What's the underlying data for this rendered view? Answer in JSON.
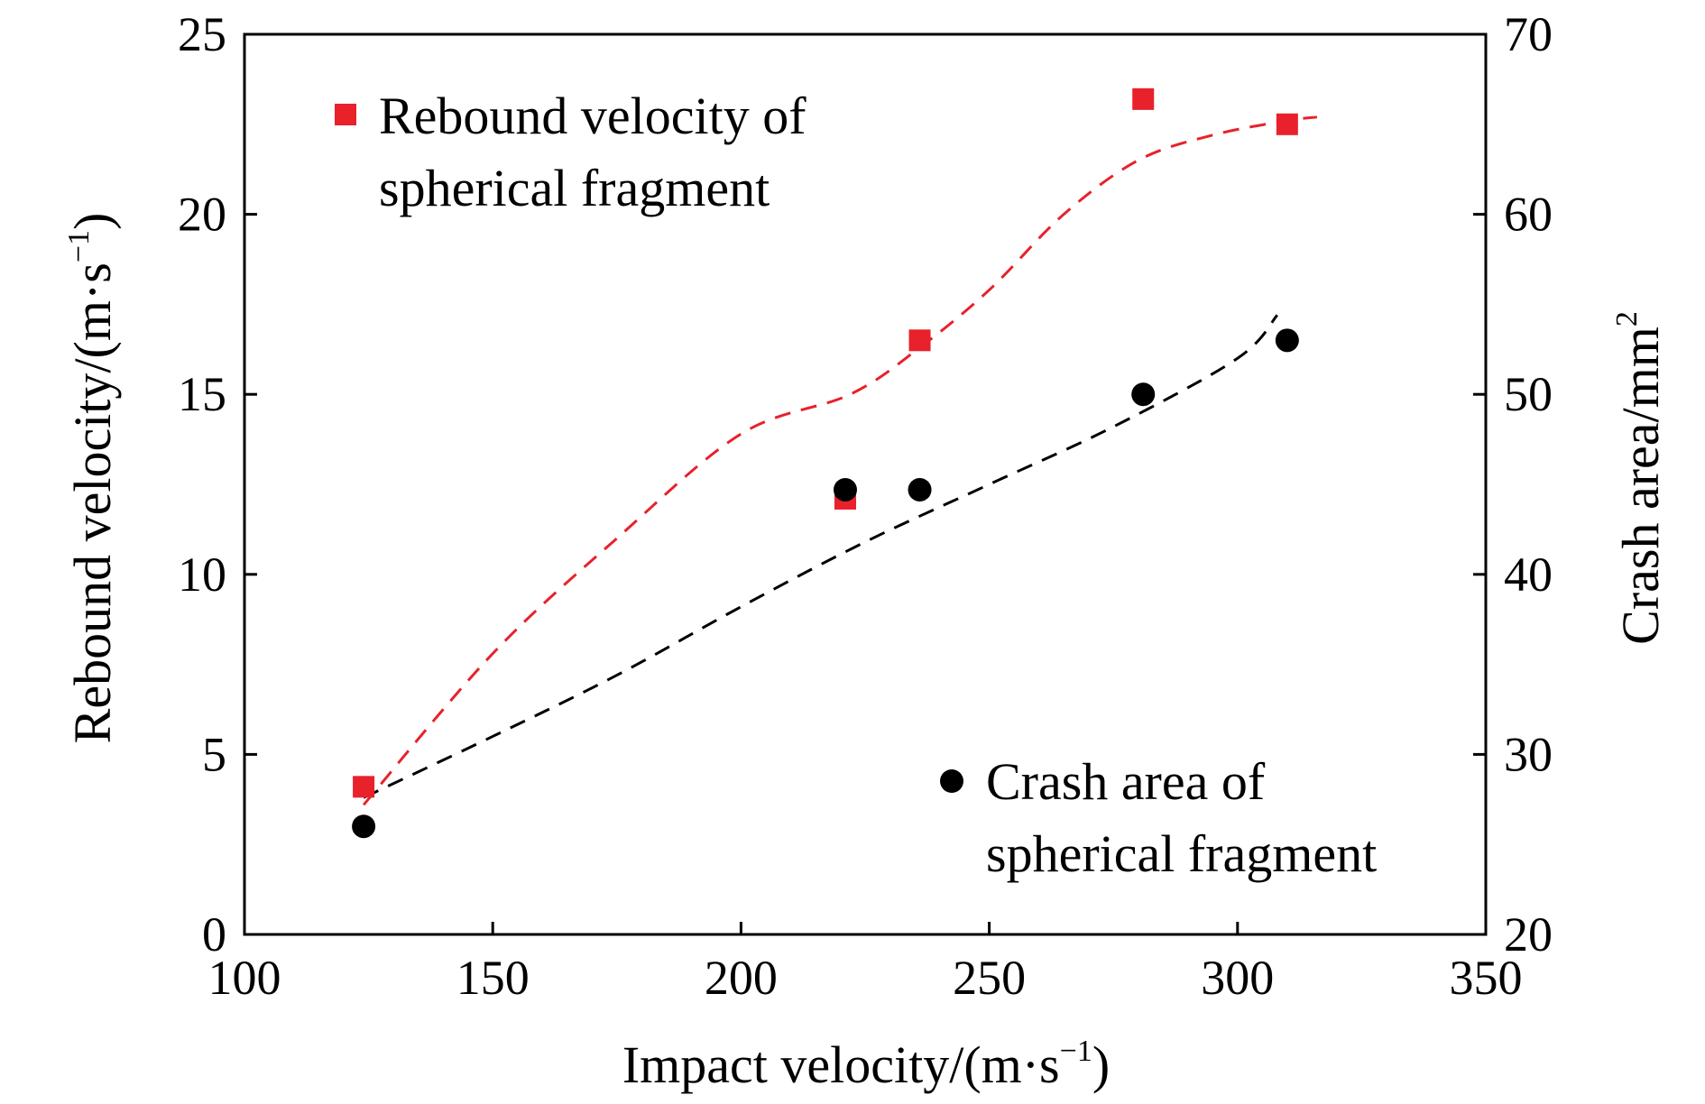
{
  "chart_data": {
    "type": "scatter",
    "xlabel": {
      "main": "Impact velocity/(m·s",
      "sup": "−1",
      "close": ")"
    },
    "ylabel": {
      "main": "Rebound velocity/(m·s",
      "sup": "−1",
      "close": ")"
    },
    "y2label": {
      "main": "Crash area/mm",
      "sup": "2"
    },
    "xlim": [
      100,
      350
    ],
    "ylim": [
      0,
      25
    ],
    "y2lim": [
      20,
      70
    ],
    "xticks": [
      100,
      150,
      200,
      250,
      300,
      350
    ],
    "yticks": [
      0,
      5,
      10,
      15,
      20,
      25
    ],
    "y2ticks": [
      20,
      30,
      40,
      50,
      60,
      70
    ],
    "grid": false,
    "series": [
      {
        "name": "Rebound velocity of spherical fragment",
        "legend_lines": [
          "Rebound velocity of",
          "spherical fragment"
        ],
        "legend_position": "top-left",
        "axis": "left",
        "marker": "square",
        "color": "#e8212b",
        "x": [
          124,
          221,
          236,
          281,
          310
        ],
        "y": [
          4.1,
          12.1,
          16.5,
          23.2,
          22.5
        ],
        "fit_line": {
          "style": "dashed",
          "x": [
            124,
            150,
            175,
            200,
            222,
            236,
            250,
            265,
            280,
            295,
            310,
            316
          ],
          "y": [
            3.6,
            7.8,
            11.0,
            13.9,
            15.0,
            16.3,
            17.9,
            20.0,
            21.5,
            22.2,
            22.6,
            22.7
          ]
        }
      },
      {
        "name": "Crash area of spherical fragment",
        "legend_lines": [
          "Crash area of",
          "spherical fragment"
        ],
        "legend_position": "bottom-right",
        "axis": "right",
        "marker": "circle",
        "color": "#000000",
        "x": [
          124,
          221,
          236,
          281,
          310
        ],
        "y": [
          26,
          44.7,
          44.7,
          50,
          53
        ],
        "fit_line": {
          "style": "dashed",
          "x": [
            124,
            150,
            175,
            200,
            225,
            250,
            275,
            300,
            308
          ],
          "y": [
            27.6,
            31.0,
            34.4,
            38.2,
            41.8,
            45.0,
            48.2,
            52.0,
            54.4
          ]
        }
      }
    ]
  }
}
